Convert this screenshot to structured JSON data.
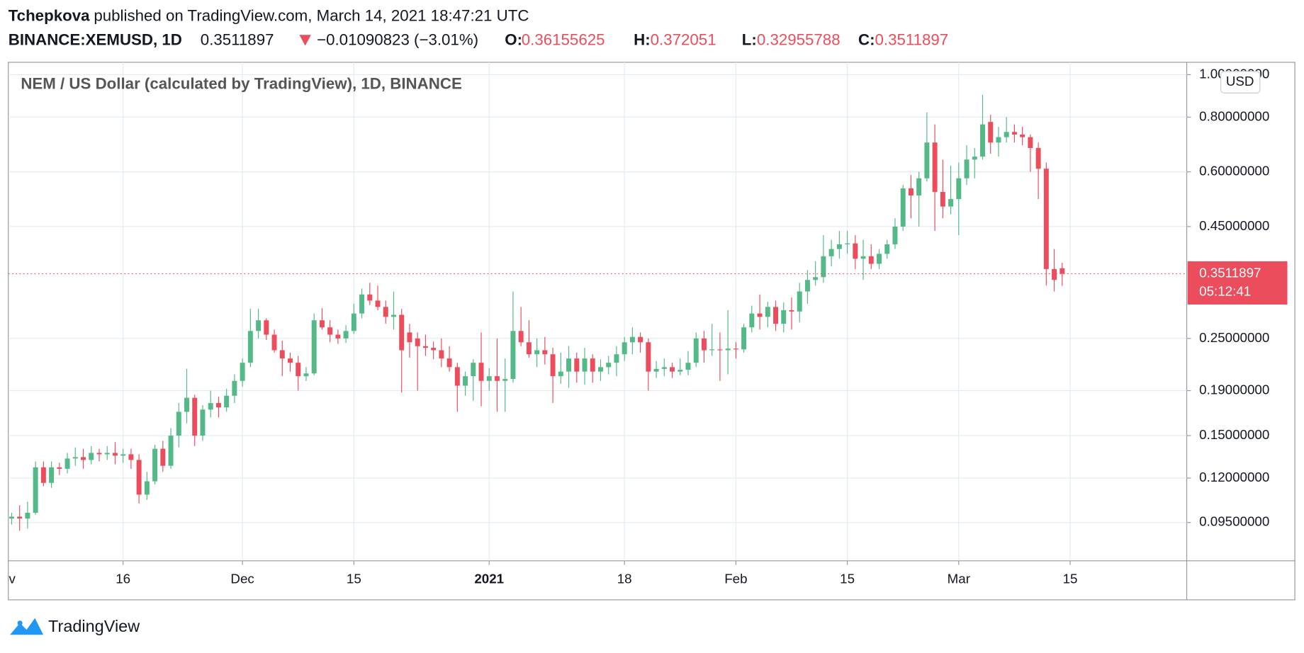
{
  "chart_data": {
    "type": "candlestick",
    "publisher": "Tchepkova",
    "published": "published on TradingView.com, March 14, 2021 18:47:21 UTC",
    "symbol": "BINANCE:XEMUSD, 1D",
    "change": "−0.01090823 (−3.01%)",
    "ohlc_labels": [
      "O:",
      "H:",
      "L:",
      "C:"
    ],
    "title": "NEM / US Dollar (calculated by TradingView), 1D, BINANCE",
    "currency": "USD",
    "countdown": "05:12:41",
    "brand": "TradingView",
    "up_color": "#53b987",
    "down_color": "#eb4d5c",
    "log_scale": true,
    "grid": true,
    "xlim": [
      -0.42,
      147.65
    ],
    "xticks": [
      {
        "value": -1,
        "label": "Nov"
      },
      {
        "value": 14,
        "label": "16"
      },
      {
        "value": 29,
        "label": "Dec"
      },
      {
        "value": 43,
        "label": "15"
      },
      {
        "value": 60,
        "label": "2021"
      },
      {
        "value": 77,
        "label": "18"
      },
      {
        "value": 91,
        "label": "Feb"
      },
      {
        "value": 105,
        "label": "15"
      },
      {
        "value": 119,
        "label": "Mar"
      },
      {
        "value": 133,
        "label": "15"
      }
    ],
    "ylim": [
      0.0777,
      1.067
    ],
    "yticks": [
      {
        "value": 0.095,
        "label": "0.09500000"
      },
      {
        "value": 0.12,
        "label": "0.12000000"
      },
      {
        "value": 0.15,
        "label": "0.15000000"
      },
      {
        "value": 0.19,
        "label": "0.19000000"
      },
      {
        "value": 0.25,
        "label": "0.25000000"
      },
      {
        "value": 0.45,
        "label": "0.45000000"
      },
      {
        "value": 0.6,
        "label": "0.60000000"
      },
      {
        "value": 0.8,
        "label": "0.80000000"
      },
      {
        "value": 1.0,
        "label": "1.00000000"
      }
    ],
    "ohlc": [
      [
        0.097,
        0.1,
        0.094,
        0.098
      ],
      [
        0.098,
        0.104,
        0.091,
        0.097
      ],
      [
        0.097,
        0.106,
        0.092,
        0.1
      ],
      [
        0.1,
        0.131,
        0.099,
        0.127
      ],
      [
        0.127,
        0.131,
        0.115,
        0.117
      ],
      [
        0.117,
        0.131,
        0.114,
        0.127
      ],
      [
        0.127,
        0.13,
        0.122,
        0.126
      ],
      [
        0.126,
        0.137,
        0.123,
        0.133
      ],
      [
        0.133,
        0.141,
        0.128,
        0.134
      ],
      [
        0.134,
        0.14,
        0.126,
        0.132
      ],
      [
        0.132,
        0.142,
        0.129,
        0.137
      ],
      [
        0.137,
        0.14,
        0.131,
        0.136
      ],
      [
        0.136,
        0.142,
        0.132,
        0.137
      ],
      [
        0.137,
        0.145,
        0.129,
        0.135
      ],
      [
        0.135,
        0.14,
        0.13,
        0.136
      ],
      [
        0.136,
        0.14,
        0.126,
        0.132
      ],
      [
        0.132,
        0.136,
        0.105,
        0.11
      ],
      [
        0.11,
        0.124,
        0.107,
        0.118
      ],
      [
        0.118,
        0.143,
        0.116,
        0.14
      ],
      [
        0.14,
        0.146,
        0.124,
        0.128
      ],
      [
        0.128,
        0.156,
        0.126,
        0.15
      ],
      [
        0.15,
        0.178,
        0.141,
        0.17
      ],
      [
        0.17,
        0.213,
        0.16,
        0.183
      ],
      [
        0.183,
        0.186,
        0.142,
        0.15
      ],
      [
        0.15,
        0.176,
        0.146,
        0.172
      ],
      [
        0.172,
        0.19,
        0.165,
        0.178
      ],
      [
        0.178,
        0.184,
        0.165,
        0.174
      ],
      [
        0.174,
        0.192,
        0.17,
        0.185
      ],
      [
        0.185,
        0.207,
        0.178,
        0.2
      ],
      [
        0.2,
        0.225,
        0.194,
        0.22
      ],
      [
        0.22,
        0.292,
        0.215,
        0.26
      ],
      [
        0.26,
        0.292,
        0.25,
        0.275
      ],
      [
        0.275,
        0.278,
        0.248,
        0.255
      ],
      [
        0.255,
        0.262,
        0.232,
        0.235
      ],
      [
        0.235,
        0.247,
        0.205,
        0.225
      ],
      [
        0.225,
        0.232,
        0.21,
        0.22
      ],
      [
        0.22,
        0.228,
        0.19,
        0.205
      ],
      [
        0.205,
        0.215,
        0.2,
        0.208
      ],
      [
        0.208,
        0.285,
        0.206,
        0.275
      ],
      [
        0.275,
        0.293,
        0.262,
        0.265
      ],
      [
        0.265,
        0.275,
        0.245,
        0.255
      ],
      [
        0.255,
        0.262,
        0.243,
        0.25
      ],
      [
        0.25,
        0.268,
        0.244,
        0.26
      ],
      [
        0.26,
        0.3,
        0.256,
        0.285
      ],
      [
        0.285,
        0.325,
        0.278,
        0.315
      ],
      [
        0.315,
        0.335,
        0.298,
        0.305
      ],
      [
        0.305,
        0.33,
        0.29,
        0.295
      ],
      [
        0.295,
        0.305,
        0.27,
        0.28
      ],
      [
        0.28,
        0.32,
        0.262,
        0.283
      ],
      [
        0.283,
        0.292,
        0.188,
        0.235
      ],
      [
        0.258,
        0.27,
        0.226,
        0.245
      ],
      [
        0.25,
        0.258,
        0.19,
        0.24
      ],
      [
        0.24,
        0.255,
        0.228,
        0.238
      ],
      [
        0.238,
        0.246,
        0.224,
        0.235
      ],
      [
        0.235,
        0.25,
        0.215,
        0.225
      ],
      [
        0.225,
        0.24,
        0.21,
        0.215
      ],
      [
        0.215,
        0.22,
        0.17,
        0.195
      ],
      [
        0.195,
        0.21,
        0.185,
        0.205
      ],
      [
        0.205,
        0.224,
        0.18,
        0.22
      ],
      [
        0.22,
        0.258,
        0.175,
        0.2
      ],
      [
        0.2,
        0.214,
        0.19,
        0.205
      ],
      [
        0.205,
        0.25,
        0.17,
        0.2
      ],
      [
        0.2,
        0.225,
        0.17,
        0.202
      ],
      [
        0.202,
        0.32,
        0.198,
        0.26
      ],
      [
        0.26,
        0.295,
        0.24,
        0.245
      ],
      [
        0.245,
        0.275,
        0.226,
        0.23
      ],
      [
        0.23,
        0.25,
        0.215,
        0.235
      ],
      [
        0.235,
        0.252,
        0.218,
        0.23
      ],
      [
        0.23,
        0.238,
        0.178,
        0.205
      ],
      [
        0.205,
        0.232,
        0.197,
        0.21
      ],
      [
        0.21,
        0.24,
        0.193,
        0.225
      ],
      [
        0.225,
        0.232,
        0.198,
        0.21
      ],
      [
        0.21,
        0.238,
        0.196,
        0.225
      ],
      [
        0.225,
        0.23,
        0.198,
        0.21
      ],
      [
        0.21,
        0.224,
        0.2,
        0.215
      ],
      [
        0.215,
        0.228,
        0.207,
        0.22
      ],
      [
        0.22,
        0.24,
        0.205,
        0.23
      ],
      [
        0.23,
        0.252,
        0.222,
        0.245
      ],
      [
        0.245,
        0.265,
        0.23,
        0.252
      ],
      [
        0.252,
        0.258,
        0.232,
        0.245
      ],
      [
        0.245,
        0.25,
        0.19,
        0.21
      ],
      [
        0.21,
        0.222,
        0.203,
        0.213
      ],
      [
        0.213,
        0.225,
        0.205,
        0.215
      ],
      [
        0.215,
        0.22,
        0.203,
        0.21
      ],
      [
        0.21,
        0.225,
        0.206,
        0.212
      ],
      [
        0.212,
        0.234,
        0.206,
        0.22
      ],
      [
        0.22,
        0.258,
        0.215,
        0.25
      ],
      [
        0.25,
        0.26,
        0.22,
        0.235
      ],
      [
        0.235,
        0.27,
        0.228,
        0.236
      ],
      [
        0.236,
        0.258,
        0.2,
        0.235
      ],
      [
        0.235,
        0.29,
        0.207,
        0.237
      ],
      [
        0.237,
        0.245,
        0.225,
        0.236
      ],
      [
        0.236,
        0.27,
        0.232,
        0.265
      ],
      [
        0.265,
        0.297,
        0.258,
        0.285
      ],
      [
        0.285,
        0.315,
        0.262,
        0.28
      ],
      [
        0.28,
        0.303,
        0.265,
        0.295
      ],
      [
        0.295,
        0.305,
        0.26,
        0.27
      ],
      [
        0.27,
        0.302,
        0.258,
        0.29
      ],
      [
        0.29,
        0.31,
        0.262,
        0.288
      ],
      [
        0.288,
        0.335,
        0.272,
        0.32
      ],
      [
        0.32,
        0.358,
        0.3,
        0.34
      ],
      [
        0.34,
        0.375,
        0.33,
        0.345
      ],
      [
        0.345,
        0.43,
        0.335,
        0.385
      ],
      [
        0.385,
        0.42,
        0.365,
        0.4
      ],
      [
        0.4,
        0.44,
        0.38,
        0.41
      ],
      [
        0.41,
        0.44,
        0.39,
        0.412
      ],
      [
        0.412,
        0.43,
        0.36,
        0.38
      ],
      [
        0.38,
        0.42,
        0.34,
        0.385
      ],
      [
        0.385,
        0.41,
        0.36,
        0.37
      ],
      [
        0.37,
        0.4,
        0.36,
        0.39
      ],
      [
        0.39,
        0.42,
        0.38,
        0.41
      ],
      [
        0.41,
        0.47,
        0.4,
        0.45
      ],
      [
        0.45,
        0.56,
        0.44,
        0.55
      ],
      [
        0.55,
        0.59,
        0.47,
        0.53
      ],
      [
        0.53,
        0.6,
        0.45,
        0.58
      ],
      [
        0.58,
        0.82,
        0.57,
        0.7
      ],
      [
        0.7,
        0.77,
        0.44,
        0.54
      ],
      [
        0.54,
        0.64,
        0.47,
        0.5
      ],
      [
        0.5,
        0.62,
        0.48,
        0.52
      ],
      [
        0.52,
        0.63,
        0.43,
        0.58
      ],
      [
        0.58,
        0.69,
        0.56,
        0.64
      ],
      [
        0.64,
        0.68,
        0.58,
        0.65
      ],
      [
        0.65,
        0.9,
        0.64,
        0.77
      ],
      [
        0.78,
        0.81,
        0.66,
        0.7
      ],
      [
        0.7,
        0.76,
        0.65,
        0.72
      ],
      [
        0.72,
        0.8,
        0.7,
        0.74
      ],
      [
        0.74,
        0.77,
        0.7,
        0.73
      ],
      [
        0.73,
        0.76,
        0.69,
        0.72
      ],
      [
        0.72,
        0.73,
        0.6,
        0.68
      ],
      [
        0.68,
        0.7,
        0.52,
        0.61
      ],
      [
        0.61,
        0.63,
        0.33,
        0.36
      ],
      [
        0.36,
        0.4,
        0.32,
        0.34
      ],
      [
        0.36155625,
        0.372051,
        0.32955788,
        0.3511897
      ]
    ]
  }
}
